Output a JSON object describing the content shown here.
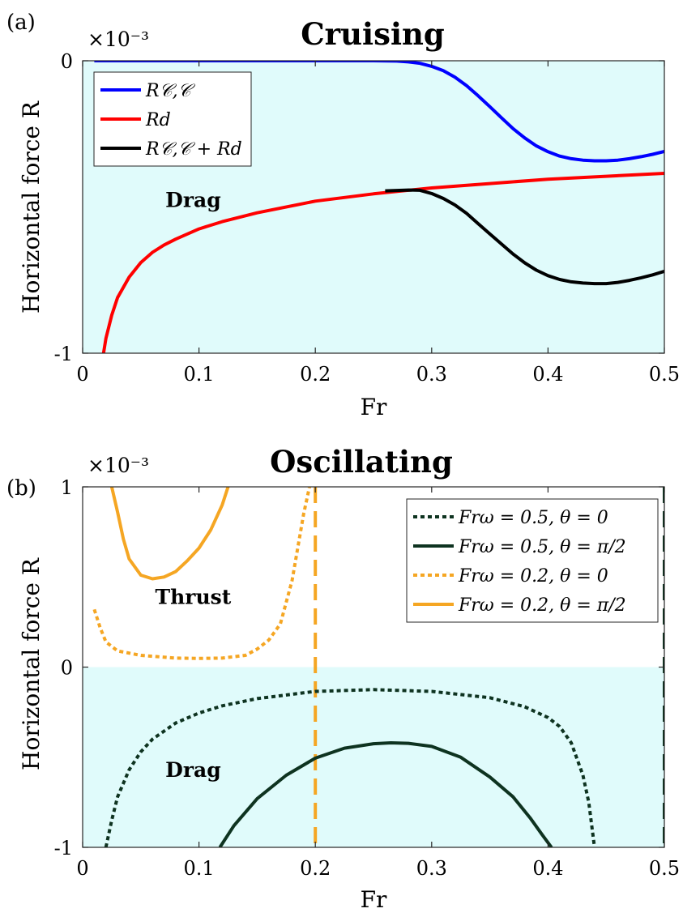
{
  "chart_data": [
    {
      "type": "line",
      "panel_label": "(a)",
      "title": "Cruising",
      "xlabel": "Fr",
      "ylabel": "Horizontal force R",
      "exponent_label": "×10⁻³",
      "xlim": [
        0,
        0.5
      ],
      "ylim": [
        -1,
        0
      ],
      "xticks": [
        "0",
        "0.1",
        "0.2",
        "0.3",
        "0.4",
        "0.5"
      ],
      "yticks": [
        "-1",
        "0"
      ],
      "regions": [
        {
          "label": "Drag",
          "x": 0.095,
          "y": -0.5,
          "from": -1,
          "to": 0,
          "color": "#e0fbfb"
        }
      ],
      "legend_position": "top-left",
      "series": [
        {
          "name": "R_{C,C}",
          "legend": "R𝒞,𝒞",
          "color": "#0000ff",
          "dash": "solid",
          "x": [
            0.01,
            0.1,
            0.2,
            0.25,
            0.27,
            0.28,
            0.29,
            0.3,
            0.31,
            0.32,
            0.33,
            0.34,
            0.35,
            0.36,
            0.37,
            0.38,
            0.39,
            0.4,
            0.41,
            0.42,
            0.43,
            0.44,
            0.45,
            0.46,
            0.47,
            0.48,
            0.49,
            0.5
          ],
          "y": [
            0,
            0,
            0,
            0,
            -0.001,
            -0.004,
            -0.009,
            -0.019,
            -0.034,
            -0.056,
            -0.085,
            -0.12,
            -0.157,
            -0.195,
            -0.232,
            -0.264,
            -0.291,
            -0.311,
            -0.326,
            -0.335,
            -0.34,
            -0.342,
            -0.342,
            -0.34,
            -0.335,
            -0.328,
            -0.32,
            -0.31
          ]
        },
        {
          "name": "R_d",
          "legend": "Rd",
          "color": "#ff0000",
          "dash": "solid",
          "x": [
            0.018,
            0.02,
            0.025,
            0.03,
            0.04,
            0.05,
            0.06,
            0.07,
            0.08,
            0.1,
            0.12,
            0.15,
            0.2,
            0.25,
            0.3,
            0.35,
            0.4,
            0.45,
            0.5
          ],
          "y": [
            -1.0,
            -0.95,
            -0.87,
            -0.81,
            -0.74,
            -0.69,
            -0.655,
            -0.63,
            -0.61,
            -0.575,
            -0.55,
            -0.52,
            -0.48,
            -0.455,
            -0.435,
            -0.42,
            -0.405,
            -0.395,
            -0.385
          ]
        },
        {
          "name": "R_{C,C} + R_d",
          "legend": "R𝒞,𝒞 + Rd",
          "color": "#000000",
          "dash": "solid",
          "x": [
            0.26,
            0.28,
            0.29,
            0.3,
            0.31,
            0.32,
            0.33,
            0.34,
            0.35,
            0.36,
            0.37,
            0.38,
            0.39,
            0.4,
            0.41,
            0.42,
            0.43,
            0.44,
            0.45,
            0.46,
            0.47,
            0.48,
            0.49,
            0.5
          ],
          "y": [
            -0.445,
            -0.442,
            -0.443,
            -0.454,
            -0.471,
            -0.493,
            -0.522,
            -0.557,
            -0.592,
            -0.627,
            -0.661,
            -0.691,
            -0.716,
            -0.735,
            -0.748,
            -0.756,
            -0.76,
            -0.762,
            -0.762,
            -0.758,
            -0.751,
            -0.742,
            -0.732,
            -0.72
          ]
        }
      ]
    },
    {
      "type": "line",
      "panel_label": "(b)",
      "title": "Oscillating",
      "xlabel": "Fr",
      "ylabel": "Horizontal force R",
      "exponent_label": "×10⁻³",
      "xlim": [
        0,
        0.5
      ],
      "ylim": [
        -1,
        1
      ],
      "xticks": [
        "0",
        "0.1",
        "0.2",
        "0.3",
        "0.4",
        "0.5"
      ],
      "yticks": [
        "-1",
        "0",
        "1"
      ],
      "regions": [
        {
          "label": "Thrust",
          "x": 0.095,
          "y": 0.35,
          "from": 0,
          "to": 1,
          "color": "#ffffff"
        },
        {
          "label": "Drag",
          "x": 0.095,
          "y": -0.61,
          "from": -1,
          "to": 0,
          "color": "#e0fbfb"
        }
      ],
      "legend_position": "top-right",
      "vlines": [
        {
          "x": 0.2,
          "color": "#f5a623",
          "dash": "dashed"
        },
        {
          "x": 0.5,
          "color": "#0e3320",
          "dash": "dashed"
        }
      ],
      "series": [
        {
          "name": "Fr_ω = 0.5, θ = 0",
          "legend": "Frω = 0.5, θ = 0",
          "color": "#0e3320",
          "dash": "dotted",
          "x": [
            0.02,
            0.025,
            0.03,
            0.04,
            0.05,
            0.06,
            0.08,
            0.1,
            0.12,
            0.15,
            0.2,
            0.25,
            0.3,
            0.35,
            0.38,
            0.4,
            0.41,
            0.42,
            0.43,
            0.435,
            0.44
          ],
          "y": [
            -1.0,
            -0.85,
            -0.72,
            -0.57,
            -0.47,
            -0.4,
            -0.31,
            -0.255,
            -0.215,
            -0.175,
            -0.135,
            -0.125,
            -0.135,
            -0.17,
            -0.22,
            -0.28,
            -0.33,
            -0.42,
            -0.6,
            -0.75,
            -1.0
          ]
        },
        {
          "name": "Fr_ω = 0.5, θ = π/2",
          "legend": "Frω = 0.5, θ = π/2",
          "color": "#0e3320",
          "dash": "solid",
          "x": [
            0.118,
            0.13,
            0.15,
            0.175,
            0.2,
            0.225,
            0.25,
            0.265,
            0.28,
            0.3,
            0.325,
            0.35,
            0.37,
            0.385,
            0.395,
            0.403
          ],
          "y": [
            -1.0,
            -0.88,
            -0.73,
            -0.6,
            -0.505,
            -0.45,
            -0.425,
            -0.42,
            -0.423,
            -0.44,
            -0.5,
            -0.61,
            -0.72,
            -0.84,
            -0.93,
            -1.0
          ]
        },
        {
          "name": "Fr_ω = 0.2, θ = 0",
          "legend": "Frω = 0.2, θ = 0",
          "color": "#f5a623",
          "dash": "dotted",
          "x": [
            0.01,
            0.015,
            0.02,
            0.03,
            0.05,
            0.08,
            0.1,
            0.12,
            0.14,
            0.15,
            0.16,
            0.17,
            0.18,
            0.19,
            0.195
          ],
          "y": [
            0.32,
            0.22,
            0.14,
            0.09,
            0.065,
            0.05,
            0.048,
            0.05,
            0.065,
            0.1,
            0.15,
            0.24,
            0.48,
            0.85,
            1.0
          ]
        },
        {
          "name": "Fr_ω = 0.2, θ = π/2",
          "legend": "Frω = 0.2, θ = π/2",
          "color": "#f5a623",
          "dash": "solid",
          "x": [
            0.025,
            0.03,
            0.035,
            0.04,
            0.05,
            0.06,
            0.07,
            0.08,
            0.09,
            0.1,
            0.11,
            0.12,
            0.125
          ],
          "y": [
            1.0,
            0.86,
            0.71,
            0.6,
            0.51,
            0.49,
            0.5,
            0.53,
            0.59,
            0.66,
            0.76,
            0.9,
            1.0
          ]
        }
      ]
    }
  ]
}
